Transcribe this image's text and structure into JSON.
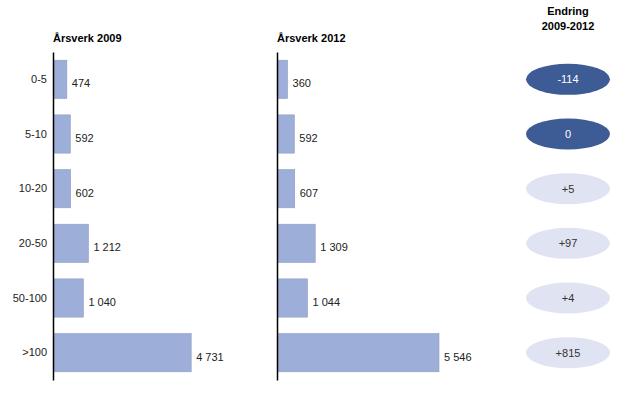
{
  "chart_data": [
    {
      "type": "bar",
      "orientation": "horizontal",
      "title": "Årsverk 2009",
      "categories": [
        "0-5",
        "5-10",
        "10-20",
        "20-50",
        "50-100",
        ">100"
      ],
      "values": [
        474,
        592,
        602,
        1212,
        1040,
        4731
      ],
      "value_labels": [
        "474",
        "592",
        "602",
        "1 212",
        "1 040",
        "4 731"
      ],
      "color": "#9daed8",
      "data_labels": true,
      "tick_labels": "y"
    },
    {
      "type": "bar",
      "orientation": "horizontal",
      "title": "Årsverk 2012",
      "categories": [
        "0-5",
        "5-10",
        "10-20",
        "20-50",
        "50-100",
        ">100"
      ],
      "values": [
        360,
        592,
        607,
        1309,
        1044,
        5546
      ],
      "value_labels": [
        "360",
        "592",
        "607",
        "1 309",
        "1 044",
        "5 546"
      ],
      "color": "#9daed8",
      "data_labels": true,
      "tick_labels": false
    },
    {
      "type": "text",
      "title": "Endring 2009-2012",
      "categories": [
        "0-5",
        "5-10",
        "10-20",
        "20-50",
        "50-100",
        ">100"
      ],
      "values": [
        -114,
        0,
        5,
        97,
        4,
        815
      ],
      "value_labels": [
        "-114",
        "0",
        "+5",
        "+97",
        "+4",
        "+815"
      ],
      "colors": [
        "#3d5b95",
        "#3d5b95",
        "#e0e4f2",
        "#e0e4f2",
        "#e0e4f2",
        "#e0e4f2"
      ],
      "data_labels": true,
      "tick_labels": false
    }
  ]
}
